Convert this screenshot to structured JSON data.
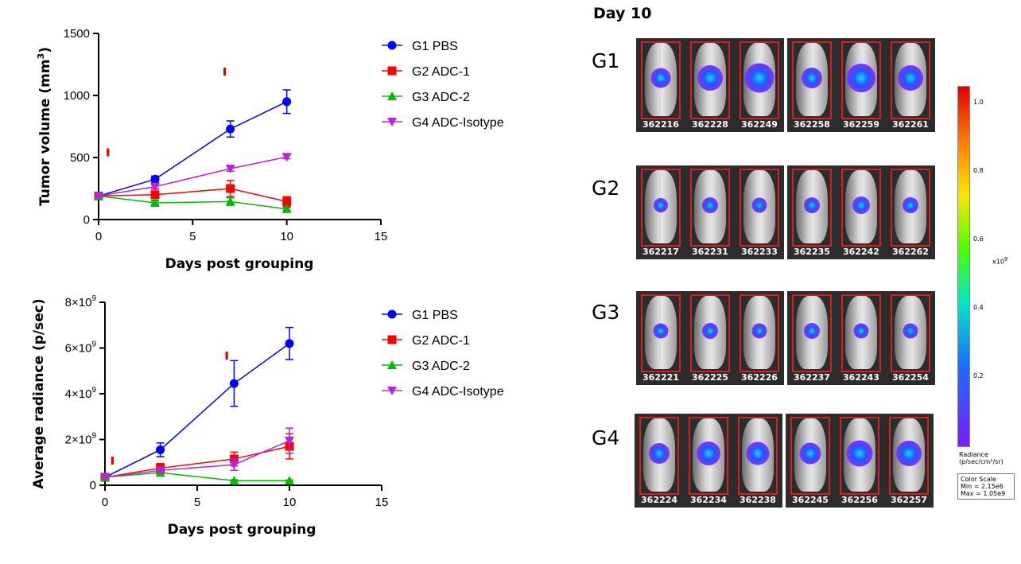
{
  "chart_data": [
    {
      "type": "line",
      "xlabel": "Days post grouping",
      "ylabel": "Tumor volume (mm",
      "ylabel_sup": "3",
      "ylabel_end": ")",
      "xlim": [
        0,
        15
      ],
      "ylim": [
        0,
        1500
      ],
      "xticks": [
        "0",
        "5",
        "10",
        "15"
      ],
      "yticks": [
        "0",
        "500",
        "1000",
        "1500"
      ],
      "legend_position": "right",
      "x": [
        0,
        3,
        7,
        10
      ],
      "series": [
        {
          "name": "G1 PBS",
          "color": "#0000ff",
          "marker": "circle",
          "values": [
            190,
            325,
            730,
            950
          ],
          "errors": [
            15,
            25,
            65,
            95
          ]
        },
        {
          "name": "G2 ADC-1",
          "color": "#ff0000",
          "marker": "square",
          "values": [
            190,
            200,
            250,
            145
          ],
          "errors": [
            15,
            45,
            65,
            40
          ]
        },
        {
          "name": "G3 ADC-2",
          "color": "#00bb00",
          "marker": "triangle-up",
          "values": [
            190,
            135,
            145,
            85
          ],
          "errors": [
            10,
            15,
            30,
            10
          ]
        },
        {
          "name": "G4 ADC-Isotype",
          "color": "#bb22dd",
          "marker": "triangle-down",
          "values": [
            190,
            265,
            410,
            505
          ],
          "errors": [
            10,
            15,
            20,
            15
          ]
        }
      ],
      "arrow_marks": [
        [
          0.5,
          510
        ],
        [
          6.7,
          1160
        ]
      ]
    },
    {
      "type": "line",
      "xlabel": "Days post grouping",
      "ylabel": "Average radiance (p/sec)",
      "xlim": [
        0,
        15
      ],
      "ylim": [
        0,
        8000000000
      ],
      "xticks": [
        "0",
        "5",
        "10",
        "15"
      ],
      "yticks": [
        "0",
        "2×10",
        "4×10",
        "6×10",
        "8×10"
      ],
      "ytick_exp": "9",
      "legend_position": "right",
      "x": [
        0,
        3,
        7,
        10
      ],
      "series": [
        {
          "name": "G1 PBS",
          "color": "#0000ff",
          "marker": "circle",
          "values": [
            350000000,
            1550000000,
            4450000000,
            6200000000
          ],
          "errors": [
            100000000,
            300000000,
            1000000000,
            700000000
          ]
        },
        {
          "name": "G2 ADC-1",
          "color": "#ff0000",
          "marker": "square",
          "values": [
            350000000,
            750000000,
            1150000000,
            1700000000
          ],
          "errors": [
            60000000,
            200000000,
            300000000,
            550000000
          ]
        },
        {
          "name": "G3 ADC-2",
          "color": "#00bb00",
          "marker": "triangle-up",
          "values": [
            350000000,
            550000000,
            200000000,
            200000000
          ],
          "errors": [
            40000000,
            60000000,
            40000000,
            30000000
          ]
        },
        {
          "name": "G4 ADC-Isotype",
          "color": "#bb22dd",
          "marker": "triangle-down",
          "values": [
            350000000,
            650000000,
            900000000,
            1950000000
          ],
          "errors": [
            50000000,
            120000000,
            250000000,
            550000000
          ]
        }
      ],
      "arrow_marks": [
        [
          0.4,
          900000000
        ],
        [
          6.6,
          5500000000
        ]
      ]
    }
  ],
  "imaging": {
    "title": "Day 10",
    "groups": [
      {
        "label": "G1",
        "ids": [
          "362216",
          "362228",
          "362249",
          "362258",
          "362259",
          "362261"
        ],
        "signal": [
          0.45,
          0.7,
          0.9,
          0.5,
          0.85,
          0.7
        ]
      },
      {
        "label": "G2",
        "ids": [
          "362217",
          "362231",
          "362233",
          "362235",
          "362242",
          "362262"
        ],
        "signal": [
          0.2,
          0.3,
          0.25,
          0.3,
          0.35,
          0.3
        ]
      },
      {
        "label": "G3",
        "ids": [
          "362221",
          "362225",
          "362226",
          "362237",
          "362243",
          "362254"
        ],
        "signal": [
          0.25,
          0.3,
          0.25,
          0.3,
          0.25,
          0.25
        ]
      },
      {
        "label": "G4",
        "ids": [
          "362224",
          "362234",
          "362238",
          "362245",
          "362256",
          "362257"
        ],
        "signal": [
          0.5,
          0.65,
          0.6,
          0.55,
          0.75,
          0.7
        ]
      }
    ],
    "scale": {
      "ticks": [
        "1.0",
        "0.8",
        "0.6",
        "0.4",
        "0.2"
      ],
      "multiplier": "x10",
      "multiplier_exp": "9",
      "radiance_label": "Radiance",
      "radiance_units": "(p/sec/cm²/sr)",
      "color_scale_title": "Color Scale",
      "min": "Min = 2.15e6",
      "max": "Max = 1.05e9"
    }
  }
}
